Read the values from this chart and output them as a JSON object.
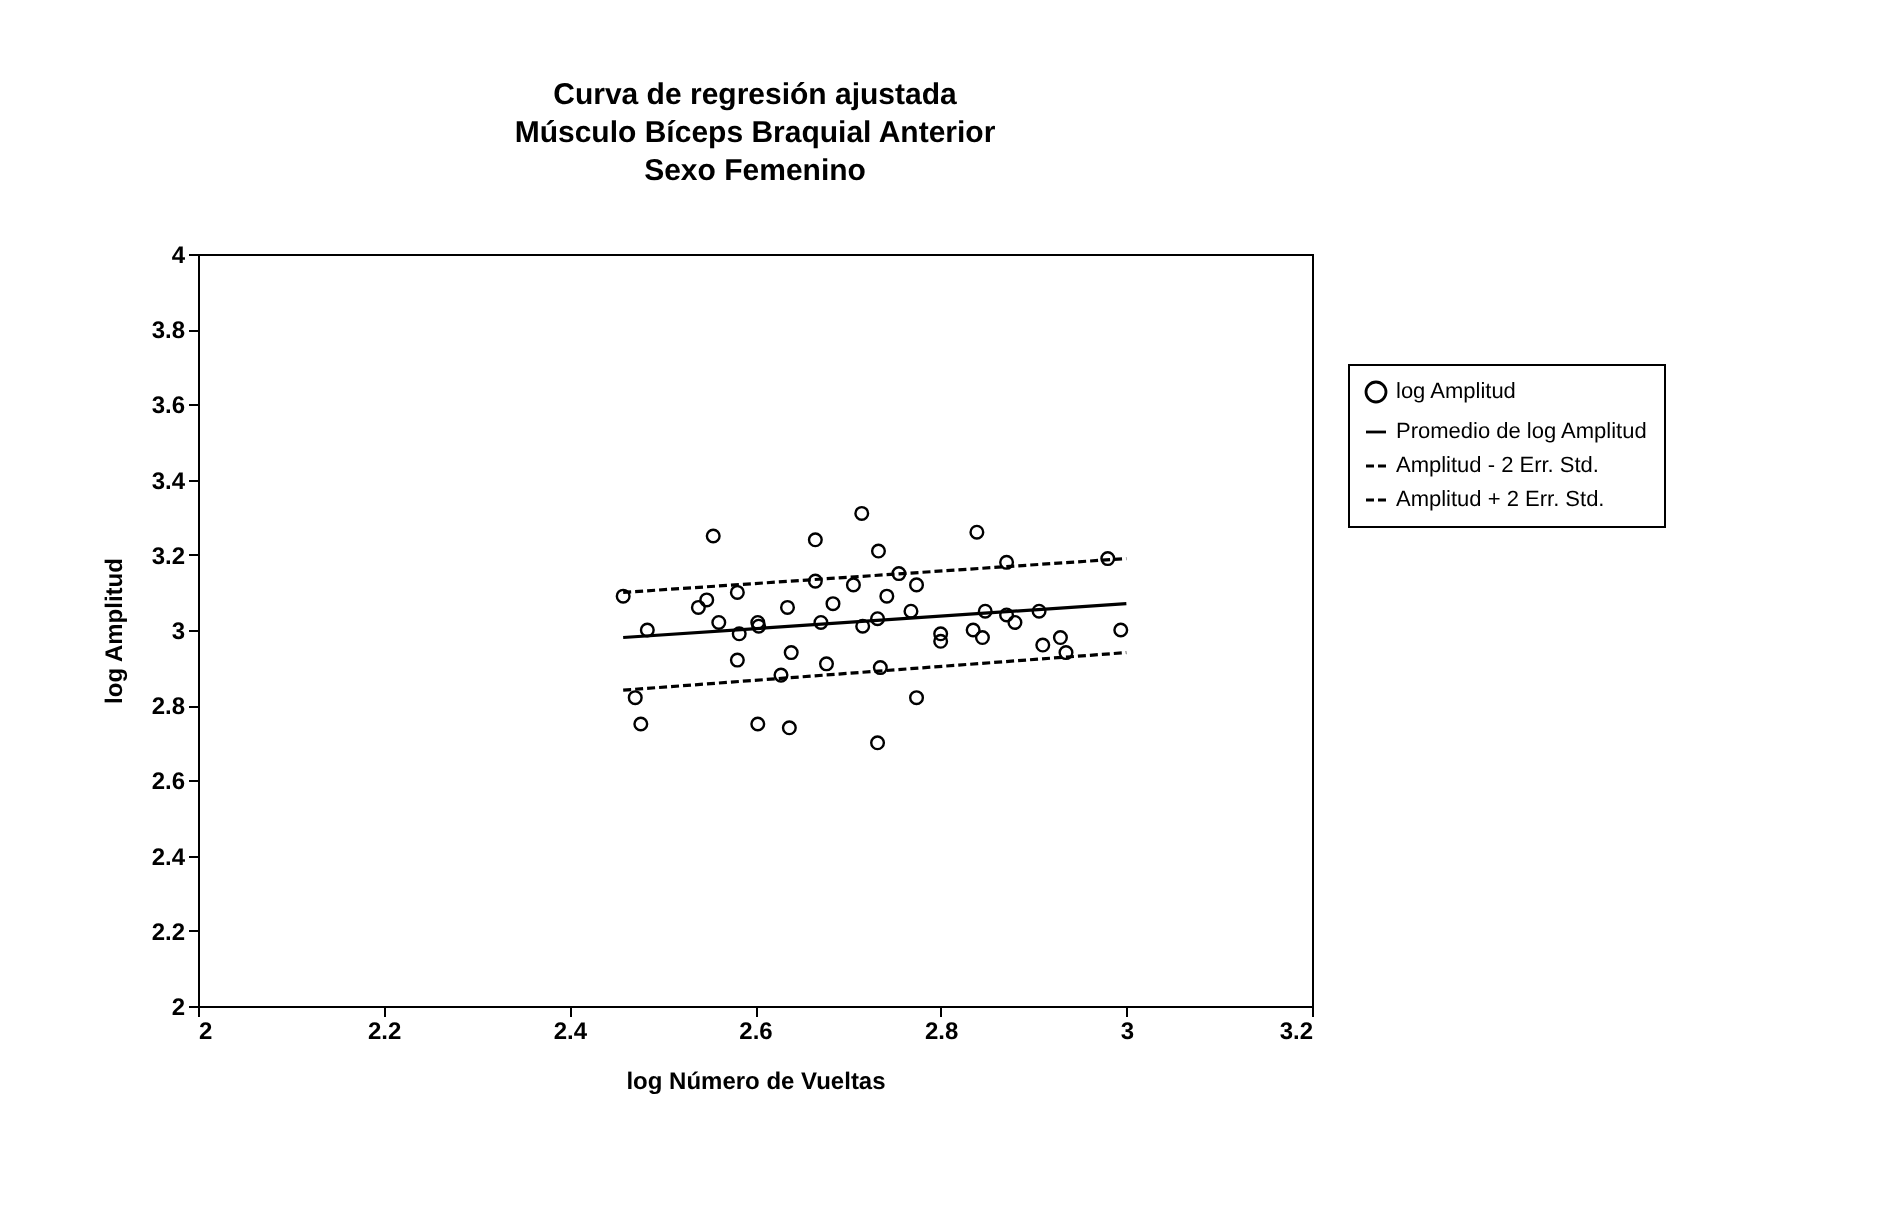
{
  "chart_data": {
    "type": "scatter",
    "title": "Curva de regresión ajustada\nMúsculo Bíceps Braquial Anterior\nSexo Femenino",
    "xlabel": "log Número de Vueltas",
    "ylabel": "log Amplitud",
    "xlim": [
      2,
      3.2
    ],
    "xticks": [
      2,
      2.2,
      2.4,
      2.6,
      2.8,
      3,
      3.2
    ],
    "ylim": [
      2,
      4
    ],
    "yticks": [
      2,
      2.2,
      2.4,
      2.6,
      2.8,
      3,
      3.2,
      3.4,
      3.6,
      3.8,
      4
    ],
    "grid": false,
    "legend": "right",
    "series": [
      {
        "name": "log Amplitud",
        "type": "scatter",
        "marker": "circle",
        "color": "#000000",
        "x": [
          2.458,
          2.484,
          2.471,
          2.477,
          2.539,
          2.548,
          2.561,
          2.581,
          2.583,
          2.581,
          2.603,
          2.604,
          2.603,
          2.628,
          2.637,
          2.639,
          2.635,
          2.665,
          2.671,
          2.677,
          2.684,
          2.706,
          2.716,
          2.732,
          2.735,
          2.732,
          2.742,
          2.755,
          2.768,
          2.774,
          2.774,
          2.8,
          2.8,
          2.835,
          2.845,
          2.848,
          2.871,
          2.88,
          2.906,
          2.91,
          2.929,
          2.935,
          2.994,
          2.555,
          2.665,
          2.715,
          2.733,
          2.839,
          2.98,
          2.871
        ],
        "values": [
          3.09,
          3.0,
          2.82,
          2.75,
          3.06,
          3.08,
          3.02,
          3.1,
          2.99,
          2.92,
          3.02,
          3.01,
          2.75,
          2.88,
          2.74,
          2.94,
          3.06,
          3.13,
          3.02,
          2.91,
          3.07,
          3.12,
          3.01,
          3.03,
          2.9,
          2.7,
          3.09,
          3.15,
          3.05,
          3.12,
          2.82,
          2.99,
          2.97,
          3.0,
          2.98,
          3.05,
          3.04,
          3.02,
          3.05,
          2.96,
          2.98,
          2.94,
          3.0,
          3.25,
          3.24,
          3.31,
          3.21,
          3.26,
          3.19,
          3.18
        ]
      },
      {
        "name": "Promedio de log Amplitud",
        "type": "line",
        "line_style": "solid",
        "color": "#000000",
        "x": [
          2.458,
          3.0
        ],
        "values": [
          2.98,
          3.07
        ]
      },
      {
        "name": "Amplitud - 2 Err. Std.",
        "type": "line",
        "line_style": "dashed",
        "color": "#000000",
        "x": [
          2.458,
          3.0
        ],
        "values": [
          2.84,
          2.94
        ]
      },
      {
        "name": "Amplitud + 2 Err. Std.",
        "type": "line",
        "line_style": "dashed",
        "color": "#000000",
        "x": [
          2.458,
          3.0
        ],
        "values": [
          3.1,
          3.19
        ]
      }
    ]
  }
}
